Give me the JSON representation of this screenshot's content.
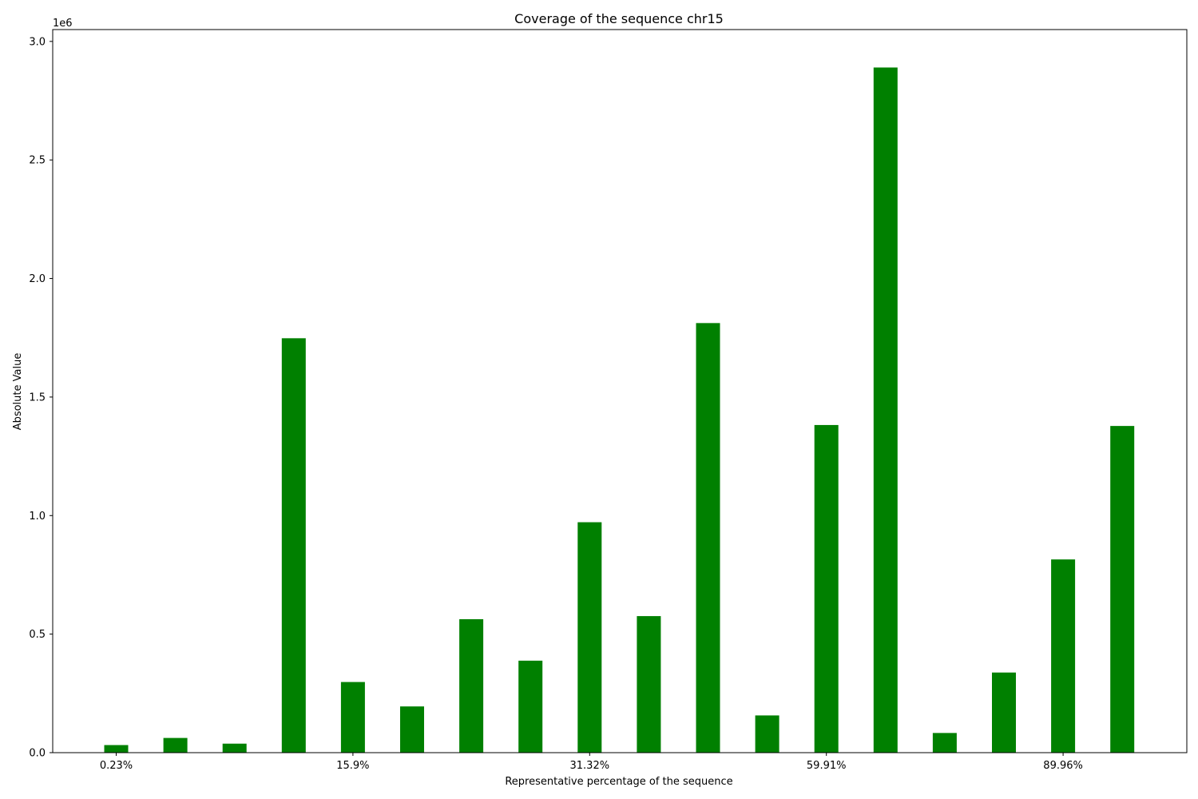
{
  "chart_data": {
    "type": "bar",
    "title": "Coverage of the sequence chr15",
    "xlabel": "Representative percentage of the sequence",
    "ylabel": "Absolute Value",
    "y_offset_label": "1e6",
    "color": "#008000",
    "ylim": [
      0,
      3.05
    ],
    "yticks": [
      0.0,
      0.5,
      1.0,
      1.5,
      2.0,
      2.5,
      3.0
    ],
    "ytick_labels": [
      "0.0",
      "0.5",
      "1.0",
      "1.5",
      "2.0",
      "2.5",
      "3.0"
    ],
    "xtick_labels": [
      {
        "bar_index": 0,
        "label": "0.23%"
      },
      {
        "bar_index": 4,
        "label": "15.9%"
      },
      {
        "bar_index": 8,
        "label": "31.32%"
      },
      {
        "bar_index": 12,
        "label": "59.91%"
      },
      {
        "bar_index": 16,
        "label": "89.96%"
      }
    ],
    "values": [
      0.032,
      0.062,
      0.038,
      1.748,
      0.298,
      0.195,
      0.563,
      0.388,
      0.972,
      0.576,
      1.812,
      0.157,
      1.382,
      2.89,
      0.083,
      0.338,
      0.815,
      1.378
    ],
    "grid": false,
    "legend": "none"
  }
}
